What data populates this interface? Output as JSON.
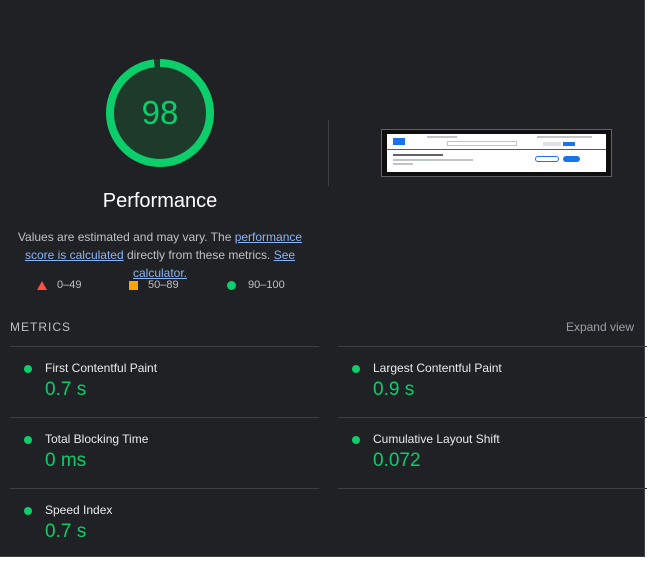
{
  "gauge": {
    "score": "98",
    "score_fraction": 0.98,
    "title": "Performance",
    "color": "#0cce6b"
  },
  "description": {
    "part1": "Values are estimated and may vary. The ",
    "link1": "performance score is calculated",
    "part2": " directly from these metrics. ",
    "link2": "See calculator."
  },
  "legend": [
    {
      "range": "0–49",
      "shape": "triangle",
      "color": "#ff4e42"
    },
    {
      "range": "50–89",
      "shape": "square",
      "color": "#ffa400"
    },
    {
      "range": "90–100",
      "shape": "circle",
      "color": "#0cce6b"
    }
  ],
  "metrics": {
    "heading": "METRICS",
    "expand_label": "Expand view",
    "items": [
      {
        "title": "First Contentful Paint",
        "value": "0.7 s"
      },
      {
        "title": "Largest Contentful Paint",
        "value": "0.9 s"
      },
      {
        "title": "Total Blocking Time",
        "value": "0 ms"
      },
      {
        "title": "Cumulative Layout Shift",
        "value": "0.072"
      },
      {
        "title": "Speed Index",
        "value": "0.7 s"
      }
    ]
  }
}
